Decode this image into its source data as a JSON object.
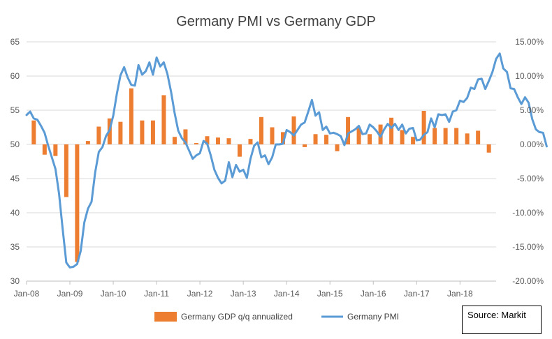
{
  "chart_data": {
    "type": "bar+line",
    "title": "Germany PMI vs Germany GDP",
    "x_ticks": [
      "Jan-08",
      "Jan-09",
      "Jan-10",
      "Jan-11",
      "Jan-12",
      "Jan-13",
      "Jan-14",
      "Jan-15",
      "Jan-16",
      "Jan-17",
      "Jan-18"
    ],
    "y_left": {
      "ylim": [
        30,
        65
      ],
      "ticks": [
        "30",
        "35",
        "40",
        "45",
        "50",
        "55",
        "60",
        "65"
      ]
    },
    "y_right": {
      "ylim": [
        -0.2,
        0.15
      ],
      "ticks": [
        "-20.00%",
        "-15.00%",
        "-10.00%",
        "-5.00%",
        "0.00%",
        "5.00%",
        "10.00%",
        "15.00%"
      ]
    },
    "gdp_bars": {
      "name": "Germany GDP q/q annualized",
      "color": "#ED7D31",
      "x": [
        "Mar-08",
        "Jun-08",
        "Sep-08",
        "Dec-08",
        "Mar-09",
        "Jun-09",
        "Sep-09",
        "Dec-09",
        "Mar-10",
        "Jun-10",
        "Sep-10",
        "Dec-10",
        "Mar-11",
        "Jun-11",
        "Sep-11",
        "Dec-11",
        "Mar-12",
        "Jun-12",
        "Sep-12",
        "Dec-12",
        "Mar-13",
        "Jun-13",
        "Sep-13",
        "Dec-13",
        "Mar-14",
        "Jun-14",
        "Sep-14",
        "Dec-14",
        "Mar-15",
        "Jun-15",
        "Sep-15",
        "Dec-15",
        "Mar-16",
        "Jun-16",
        "Sep-16",
        "Dec-16",
        "Mar-17",
        "Jun-17",
        "Sep-17",
        "Dec-17",
        "Mar-18",
        "Jun-18",
        "Sep-18"
      ],
      "values": [
        0.035,
        -0.015,
        -0.017,
        -0.077,
        -0.172,
        0.005,
        0.026,
        0.038,
        0.033,
        0.082,
        0.035,
        0.035,
        0.072,
        0.011,
        0.022,
        0.002,
        0.012,
        0.01,
        0.009,
        -0.018,
        0.008,
        0.04,
        0.025,
        0.018,
        0.041,
        -0.004,
        0.015,
        0.014,
        -0.01,
        0.04,
        0.025,
        0.015,
        0.029,
        0.039,
        0.021,
        0.011,
        0.049,
        0.024,
        0.024,
        0.024,
        0.016,
        0.02,
        -0.012
      ]
    },
    "pmi_line": {
      "name": "Germany PMI",
      "color": "#5B9BD5",
      "values": [
        54.3,
        54.8,
        53.8,
        53.6,
        52.7,
        51.7,
        49.8,
        48.1,
        46.4,
        42.8,
        37.6,
        32.7,
        32.0,
        32.1,
        32.5,
        34.4,
        38.6,
        40.6,
        41.6,
        45.9,
        48.9,
        49.6,
        51.2,
        52.1,
        54.2,
        57.4,
        60.1,
        61.3,
        59.8,
        58.7,
        58.6,
        61.6,
        60.2,
        60.7,
        62.0,
        60.2,
        62.7,
        61.4,
        62.0,
        60.3,
        57.7,
        54.6,
        52.0,
        50.9,
        50.3,
        49.1,
        47.9,
        48.4,
        48.7,
        50.5,
        50.1,
        48.4,
        46.3,
        45.1,
        44.3,
        44.7,
        47.4,
        45.2,
        47.0,
        46.0,
        46.3,
        45.1,
        47.9,
        49.8,
        50.3,
        48.1,
        48.4,
        47.1,
        48.1,
        50.0,
        50.0,
        50.1,
        52.1,
        51.8,
        51.3,
        52.1,
        52.9,
        53.2,
        54.8,
        56.5,
        54.2,
        54.7,
        52.1,
        52.6,
        51.6,
        51.7,
        51.5,
        51.2,
        49.9,
        51.6,
        51.9,
        52.2,
        52.7,
        51.5,
        51.6,
        52.9,
        52.5,
        51.9,
        51.1,
        52.2,
        53.0,
        52.4,
        53.0,
        52.1,
        52.9,
        51.6,
        52.3,
        52.4,
        50.6,
        50.7,
        51.4,
        51.8,
        53.8,
        52.5,
        54.4,
        54.3,
        54.4,
        53.3,
        54.8,
        55.0,
        56.4,
        56.2,
        56.8,
        58.3,
        58.1,
        59.5,
        59.6,
        58.1,
        59.3,
        60.6,
        62.5,
        63.3,
        61.1,
        60.6,
        58.2,
        58.1,
        56.9,
        55.9,
        56.9,
        56.1,
        53.7,
        52.2,
        51.8,
        51.7,
        49.7
      ]
    },
    "legend": {
      "placement": "bottom"
    },
    "source": "Source: Markit"
  }
}
